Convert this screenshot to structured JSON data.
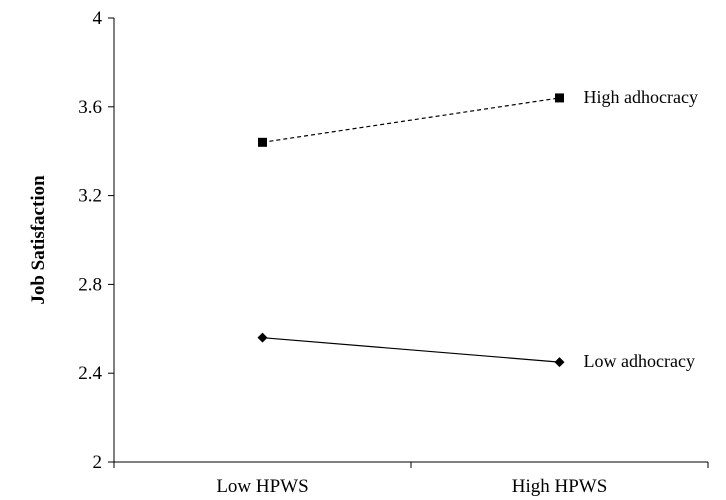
{
  "chart_data": {
    "type": "line",
    "categories": [
      "Low HPWS",
      "High HPWS"
    ],
    "series": [
      {
        "name": "High adhocracy",
        "values": [
          3.44,
          3.64
        ],
        "line_style": "dashed",
        "marker": "square"
      },
      {
        "name": "Low adhocracy",
        "values": [
          2.56,
          2.45
        ],
        "line_style": "solid",
        "marker": "diamond"
      }
    ],
    "title": "",
    "xlabel": "",
    "ylabel": "Job Satisfaction",
    "ylim": [
      2,
      4
    ],
    "yticks": [
      "2",
      "2.4",
      "2.8",
      "3.2",
      "3.6",
      "4"
    ],
    "grid": false,
    "legend": "labels at line ends"
  },
  "colors": {
    "line": "#000000",
    "background": "#ffffff"
  }
}
